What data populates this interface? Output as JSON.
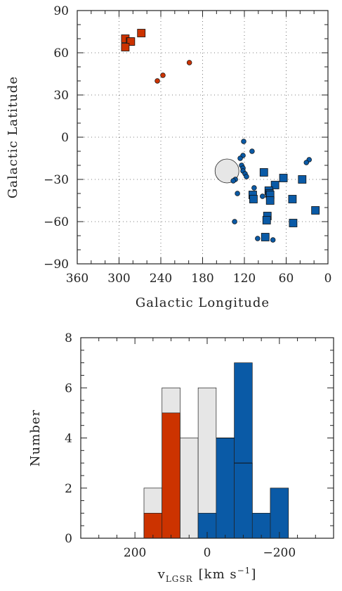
{
  "chart_data": [
    {
      "type": "scatter",
      "xlabel": "Galactic Longitude",
      "ylabel": "Galactic Latitude",
      "xlim": [
        360,
        0
      ],
      "ylim": [
        -90,
        90
      ],
      "xticks": [
        "360",
        "300",
        "240",
        "180",
        "120",
        "60",
        "0"
      ],
      "yticks": [
        "90",
        "60",
        "30",
        "0",
        "−30",
        "−60",
        "−90"
      ],
      "grid": true,
      "colors": {
        "red": "#cc3300",
        "blue": "#0a5aa6",
        "circle": "#e6e6e6"
      },
      "series": [
        {
          "color": "red",
          "marker": "square",
          "points": [
            [
              291,
              70
            ],
            [
              284,
              68
            ],
            [
              283,
              68
            ],
            [
              268,
              74
            ],
            [
              291,
              64
            ]
          ]
        },
        {
          "color": "red",
          "marker": "circle",
          "points": [
            [
              245,
              40
            ],
            [
              237,
              44
            ],
            [
              199,
              53
            ]
          ]
        },
        {
          "color": "blue",
          "marker": "square",
          "points": [
            [
              92,
              -25
            ],
            [
              64,
              -29
            ],
            [
              37,
              -30
            ],
            [
              76,
              -34
            ],
            [
              85,
              -38
            ],
            [
              84,
              -40
            ],
            [
              108,
              -41
            ],
            [
              83,
              -41
            ],
            [
              107,
              -44
            ],
            [
              51,
              -44
            ],
            [
              83,
              -45
            ],
            [
              87,
              -56
            ],
            [
              88,
              -59
            ],
            [
              50,
              -61
            ],
            [
              18,
              -52
            ],
            [
              90,
              -71
            ]
          ]
        },
        {
          "color": "blue",
          "marker": "circle",
          "points": [
            [
              121,
              -3
            ],
            [
              109,
              -10
            ],
            [
              122,
              -13
            ],
            [
              126,
              -15
            ],
            [
              124,
              -20
            ],
            [
              122,
              -22
            ],
            [
              122,
              -24
            ],
            [
              119,
              -26
            ],
            [
              117,
              -28
            ],
            [
              133,
              -30
            ],
            [
              136,
              -31
            ],
            [
              106,
              -36
            ],
            [
              27,
              -16
            ],
            [
              31,
              -18
            ],
            [
              130,
              -40
            ],
            [
              94,
              -42
            ],
            [
              134,
              -60
            ],
            [
              101,
              -72
            ],
            [
              79,
              -73
            ]
          ]
        },
        {
          "color": "circle",
          "marker": "large-circle",
          "points": [
            [
              145,
              -24
            ]
          ]
        }
      ]
    },
    {
      "type": "bar",
      "xlabel_main": "v",
      "xlabel_sub": "LGSR",
      "xlabel_unit": "[km s",
      "xlabel_exp": "−1",
      "xlabel_close": "]",
      "ylabel": "Number",
      "xlim": [
        350,
        -350
      ],
      "ylim": [
        0,
        8
      ],
      "xticks": [
        "200",
        "0",
        "−200"
      ],
      "yticks": [
        "0",
        "2",
        "4",
        "6",
        "8"
      ],
      "bin_width": 50,
      "bin_left_edges": [
        175,
        125,
        75,
        25,
        -25,
        -75,
        -125,
        -175
      ],
      "series": [
        {
          "name": "gray",
          "color": "#e6e6e6",
          "values": [
            2,
            6,
            4,
            6,
            4,
            3,
            1,
            2
          ]
        },
        {
          "name": "red",
          "color": "#cc3300",
          "values": [
            1,
            5,
            0,
            0,
            0,
            0,
            0,
            0
          ]
        },
        {
          "name": "blue",
          "color": "#0a5aa6",
          "values": [
            0,
            0,
            0,
            1,
            4,
            7,
            1,
            2
          ]
        }
      ],
      "blue_overlay_lines": [
        [
          -75,
          3
        ],
        [
          -25,
          4
        ]
      ]
    }
  ]
}
